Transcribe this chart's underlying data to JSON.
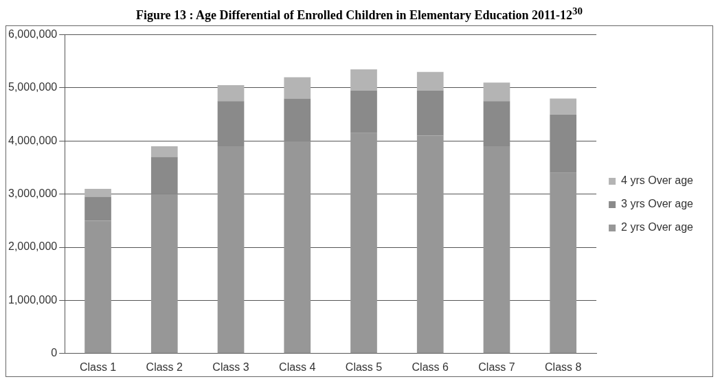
{
  "chart_data": {
    "type": "bar",
    "stacked": true,
    "title": "Figure 13 : Age Differential of Enrolled Children in Elementary Education 2011-12$^{30}$",
    "categories": [
      "Class 1",
      "Class 2",
      "Class 3",
      "Class 4",
      "Class 5",
      "Class 6",
      "Class 7",
      "Class 8"
    ],
    "series": [
      {
        "name": "2 yrs Over age",
        "color": "#979797",
        "values": [
          2500000,
          3000000,
          3900000,
          4000000,
          4150000,
          4100000,
          3900000,
          3400000
        ]
      },
      {
        "name": "3 yrs Over age",
        "color": "#8a8a8a",
        "values": [
          450000,
          700000,
          850000,
          800000,
          800000,
          850000,
          850000,
          1100000
        ]
      },
      {
        "name": "4 yrs Over age",
        "color": "#b4b4b4",
        "values": [
          150000,
          200000,
          300000,
          400000,
          400000,
          350000,
          350000,
          300000
        ]
      }
    ],
    "ylim": [
      0,
      6000000
    ],
    "yticks": [
      {
        "value": 0,
        "label": "0"
      },
      {
        "value": 1000000,
        "label": "1,000,000"
      },
      {
        "value": 2000000,
        "label": "2,000,000"
      },
      {
        "value": 3000000,
        "label": "3,000,000"
      },
      {
        "value": 4000000,
        "label": "4,000,000"
      },
      {
        "value": 5000000,
        "label": "5,000,000"
      },
      {
        "value": 6000000,
        "label": "6,000,000"
      }
    ],
    "grid": "y",
    "legend": "right"
  }
}
